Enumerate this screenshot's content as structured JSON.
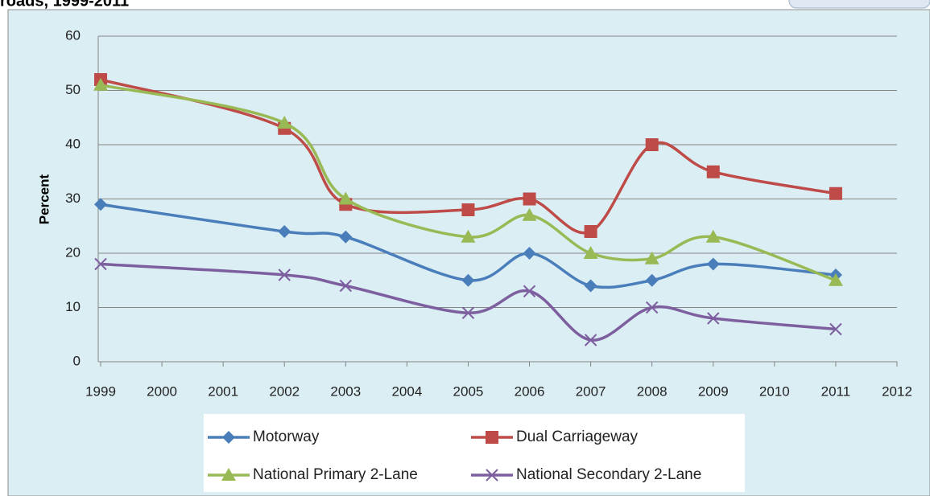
{
  "chart_data": {
    "type": "line",
    "title": "roads, 1999-2011",
    "ylabel": "Percent",
    "x": [
      1999,
      2002,
      2003,
      2005,
      2006,
      2007,
      2008,
      2009,
      2011
    ],
    "xlim": [
      1999,
      2012
    ],
    "xticks": [
      1999,
      2000,
      2001,
      2002,
      2003,
      2004,
      2005,
      2006,
      2007,
      2008,
      2009,
      2010,
      2011,
      2012
    ],
    "ylim": [
      0,
      60
    ],
    "yticks": [
      0,
      10,
      20,
      30,
      40,
      50,
      60
    ],
    "grid": true,
    "legend": "bottom",
    "series": [
      {
        "name": "Motorway",
        "color": "#4a7ebb",
        "marker": "diamond",
        "values": [
          29,
          24,
          23,
          15,
          20,
          14,
          15,
          18,
          16
        ]
      },
      {
        "name": "Dual Carriageway",
        "color": "#be4b48",
        "marker": "square",
        "values": [
          52,
          43,
          29,
          28,
          30,
          24,
          40,
          35,
          31
        ]
      },
      {
        "name": "National Primary 2-Lane",
        "color": "#98b954",
        "marker": "triangle",
        "values": [
          51,
          44,
          30,
          23,
          27,
          20,
          19,
          23,
          15
        ]
      },
      {
        "name": "National Secondary 2-Lane",
        "color": "#7d5fa0",
        "marker": "x",
        "values": [
          18,
          16,
          14,
          9,
          13,
          4,
          10,
          8,
          6
        ]
      }
    ]
  }
}
